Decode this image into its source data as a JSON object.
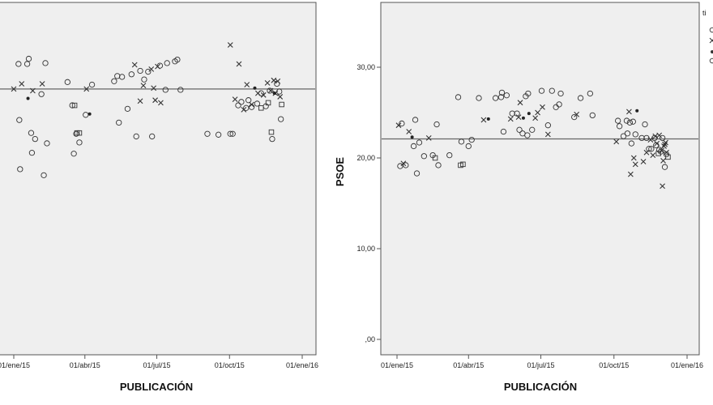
{
  "chart_data": [
    {
      "type": "scatter",
      "xlabel": "PUBLICACIÓN",
      "ylabel": "",
      "x_ticks": [
        "01/ene/15",
        "01/abr/15",
        "01/jul/15",
        "01/oct/15",
        "01/ene/16"
      ],
      "y_ticks": [],
      "reference_line": 28.7,
      "grid": false,
      "series": [
        {
          "marker": "circle",
          "points": [
            [
              "2015-01-07",
              31.6
            ],
            [
              "2015-01-08",
              25.1
            ],
            [
              "2015-01-09",
              19.4
            ],
            [
              "2015-01-18",
              31.6
            ],
            [
              "2015-01-20",
              32.2
            ],
            [
              "2015-01-23",
              23.6
            ],
            [
              "2015-01-24",
              21.3
            ],
            [
              "2015-01-28",
              22.9
            ],
            [
              "2015-02-05",
              28.1
            ],
            [
              "2015-02-08",
              18.7
            ],
            [
              "2015-02-10",
              31.7
            ],
            [
              "2015-02-12",
              22.4
            ],
            [
              "2015-03-10",
              29.5
            ],
            [
              "2015-03-16",
              26.8
            ],
            [
              "2015-03-18",
              21.2
            ],
            [
              "2015-03-21",
              23.5
            ],
            [
              "2015-03-25",
              22.5
            ],
            [
              "2015-04-02",
              25.7
            ],
            [
              "2015-04-10",
              29.2
            ],
            [
              "2015-05-08",
              29.6
            ],
            [
              "2015-05-12",
              30.2
            ],
            [
              "2015-05-14",
              24.8
            ],
            [
              "2015-05-18",
              30.1
            ],
            [
              "2015-05-25",
              26.4
            ],
            [
              "2015-05-30",
              30.4
            ],
            [
              "2015-06-05",
              23.2
            ],
            [
              "2015-06-10",
              30.8
            ],
            [
              "2015-06-15",
              29.8
            ],
            [
              "2015-06-20",
              30.7
            ],
            [
              "2015-06-25",
              23.2
            ],
            [
              "2015-07-05",
              31.4
            ],
            [
              "2015-07-12",
              28.6
            ],
            [
              "2015-07-14",
              31.7
            ],
            [
              "2015-07-24",
              31.9
            ],
            [
              "2015-07-27",
              32.1
            ],
            [
              "2015-07-31",
              28.6
            ],
            [
              "2015-09-03",
              23.5
            ],
            [
              "2015-09-17",
              23.4
            ],
            [
              "2015-10-02",
              23.5
            ],
            [
              "2015-10-05",
              23.5
            ],
            [
              "2015-10-12",
              26.8
            ],
            [
              "2015-10-16",
              27.2
            ],
            [
              "2015-10-22",
              26.5
            ],
            [
              "2015-10-25",
              27.4
            ],
            [
              "2015-10-29",
              26.6
            ],
            [
              "2015-11-05",
              27.0
            ],
            [
              "2015-11-10",
              28.2
            ],
            [
              "2015-11-16",
              26.7
            ],
            [
              "2015-11-21",
              28.5
            ],
            [
              "2015-11-24",
              22.9
            ],
            [
              "2015-11-30",
              29.3
            ],
            [
              "2015-12-03",
              28.4
            ],
            [
              "2015-12-05",
              25.2
            ]
          ]
        },
        {
          "marker": "x",
          "points": [
            [
              "2015-01-01",
              28.7
            ],
            [
              "2015-01-11",
              29.3
            ],
            [
              "2015-01-25",
              28.5
            ],
            [
              "2015-02-06",
              29.3
            ],
            [
              "2015-04-03",
              28.7
            ],
            [
              "2015-06-03",
              31.5
            ],
            [
              "2015-06-10",
              27.3
            ],
            [
              "2015-06-14",
              29.1
            ],
            [
              "2015-06-24",
              31.0
            ],
            [
              "2015-06-27",
              28.8
            ],
            [
              "2015-06-29",
              27.4
            ],
            [
              "2015-07-02",
              31.3
            ],
            [
              "2015-07-06",
              27.1
            ],
            [
              "2015-10-02",
              33.8
            ],
            [
              "2015-10-08",
              27.5
            ],
            [
              "2015-10-13",
              31.6
            ],
            [
              "2015-10-19",
              26.3
            ],
            [
              "2015-10-23",
              29.2
            ],
            [
              "2015-10-29",
              26.9
            ],
            [
              "2015-11-06",
              28.2
            ],
            [
              "2015-11-13",
              28.0
            ],
            [
              "2015-11-18",
              29.4
            ],
            [
              "2015-11-22",
              28.5
            ],
            [
              "2015-11-26",
              29.7
            ],
            [
              "2015-11-28",
              28.2
            ],
            [
              "2015-12-01",
              29.6
            ],
            [
              "2015-12-04",
              27.8
            ]
          ]
        },
        {
          "marker": "dot",
          "points": [
            [
              "2015-01-19",
              27.6
            ],
            [
              "2015-04-07",
              25.8
            ],
            [
              "2015-11-02",
              28.8
            ],
            [
              "2015-11-27",
              28.2
            ]
          ]
        },
        {
          "marker": "square",
          "points": [
            [
              "2015-03-19",
              26.8
            ],
            [
              "2015-03-22",
              23.6
            ],
            [
              "2015-03-25",
              23.6
            ],
            [
              "2015-11-10",
              26.5
            ],
            [
              "2015-11-19",
              27.1
            ],
            [
              "2015-11-23",
              23.7
            ],
            [
              "2015-12-06",
              26.9
            ]
          ]
        }
      ]
    },
    {
      "type": "scatter",
      "xlabel": "PUBLICACIÓN",
      "ylabel": "PSOE",
      "x_ticks": [
        "01/ene/15",
        "01/abr/15",
        "01/jul/15",
        "01/oct/15",
        "01/ene/16"
      ],
      "y_ticks": [
        "30,00",
        "20,00",
        "10,00",
        ",00"
      ],
      "reference_line": 22.1,
      "grid": false,
      "series": [
        {
          "marker": "circle",
          "points": [
            [
              "2015-01-05",
              19.1
            ],
            [
              "2015-01-07",
              23.8
            ],
            [
              "2015-01-12",
              19.2
            ],
            [
              "2015-01-22",
              21.3
            ],
            [
              "2015-01-24",
              24.2
            ],
            [
              "2015-01-26",
              18.3
            ],
            [
              "2015-01-29",
              21.7
            ],
            [
              "2015-02-04",
              20.2
            ],
            [
              "2015-02-15",
              20.3
            ],
            [
              "2015-02-20",
              23.7
            ],
            [
              "2015-02-22",
              19.2
            ],
            [
              "2015-03-08",
              20.3
            ],
            [
              "2015-03-19",
              26.7
            ],
            [
              "2015-03-23",
              21.8
            ],
            [
              "2015-04-01",
              21.3
            ],
            [
              "2015-04-05",
              22.0
            ],
            [
              "2015-04-14",
              26.6
            ],
            [
              "2015-05-05",
              26.6
            ],
            [
              "2015-05-12",
              26.7
            ],
            [
              "2015-05-13",
              27.2
            ],
            [
              "2015-05-15",
              22.9
            ],
            [
              "2015-05-19",
              26.9
            ],
            [
              "2015-05-26",
              24.9
            ],
            [
              "2015-06-01",
              24.9
            ],
            [
              "2015-06-04",
              23.1
            ],
            [
              "2015-06-08",
              22.7
            ],
            [
              "2015-06-12",
              26.8
            ],
            [
              "2015-06-14",
              22.5
            ],
            [
              "2015-06-15",
              27.1
            ],
            [
              "2015-06-20",
              23.1
            ],
            [
              "2015-07-02",
              27.4
            ],
            [
              "2015-07-10",
              23.6
            ],
            [
              "2015-07-15",
              27.4
            ],
            [
              "2015-07-20",
              25.6
            ],
            [
              "2015-07-24",
              25.9
            ],
            [
              "2015-07-26",
              27.1
            ],
            [
              "2015-08-12",
              24.5
            ],
            [
              "2015-08-20",
              26.6
            ],
            [
              "2015-09-01",
              27.1
            ],
            [
              "2015-09-04",
              24.7
            ],
            [
              "2015-10-06",
              24.1
            ],
            [
              "2015-10-08",
              23.5
            ],
            [
              "2015-10-13",
              22.4
            ],
            [
              "2015-10-17",
              24.1
            ],
            [
              "2015-10-18",
              22.7
            ],
            [
              "2015-10-21",
              23.9
            ],
            [
              "2015-10-23",
              21.6
            ],
            [
              "2015-10-25",
              24.0
            ],
            [
              "2015-10-28",
              22.6
            ],
            [
              "2015-11-05",
              22.2
            ],
            [
              "2015-11-09",
              23.7
            ],
            [
              "2015-11-11",
              22.2
            ],
            [
              "2015-11-14",
              21.0
            ],
            [
              "2015-11-17",
              21.0
            ],
            [
              "2015-11-21",
              22.2
            ],
            [
              "2015-11-23",
              21.4
            ],
            [
              "2015-11-27",
              20.9
            ],
            [
              "2015-11-29",
              20.7
            ],
            [
              "2015-12-01",
              22.2
            ],
            [
              "2015-12-04",
              19.0
            ],
            [
              "2015-12-06",
              20.4
            ]
          ]
        },
        {
          "marker": "x",
          "points": [
            [
              "2015-01-03",
              23.6
            ],
            [
              "2015-01-09",
              19.4
            ],
            [
              "2015-01-16",
              22.9
            ],
            [
              "2015-02-10",
              22.2
            ],
            [
              "2015-04-20",
              24.2
            ],
            [
              "2015-05-24",
              24.3
            ],
            [
              "2015-06-03",
              24.5
            ],
            [
              "2015-06-05",
              26.1
            ],
            [
              "2015-06-24",
              24.4
            ],
            [
              "2015-06-27",
              25.0
            ],
            [
              "2015-07-03",
              25.6
            ],
            [
              "2015-07-10",
              22.6
            ],
            [
              "2015-08-15",
              24.8
            ],
            [
              "2015-10-04",
              21.8
            ],
            [
              "2015-10-20",
              25.1
            ],
            [
              "2015-10-22",
              18.2
            ],
            [
              "2015-10-26",
              20.0
            ],
            [
              "2015-10-28",
              19.3
            ],
            [
              "2015-11-07",
              19.6
            ],
            [
              "2015-11-11",
              20.6
            ],
            [
              "2015-11-16",
              22.0
            ],
            [
              "2015-11-19",
              20.3
            ],
            [
              "2015-11-22",
              22.4
            ],
            [
              "2015-11-24",
              21.6
            ],
            [
              "2015-11-27",
              22.5
            ],
            [
              "2015-11-30",
              20.8
            ],
            [
              "2015-12-01",
              16.9
            ],
            [
              "2015-12-02",
              19.7
            ],
            [
              "2015-12-03",
              21.3
            ],
            [
              "2015-12-04",
              21.5
            ],
            [
              "2015-12-05",
              21.7
            ],
            [
              "2015-12-06",
              20.6
            ]
          ]
        },
        {
          "marker": "dot",
          "points": [
            [
              "2015-01-20",
              22.3
            ],
            [
              "2015-04-26",
              24.3
            ],
            [
              "2015-06-09",
              24.4
            ],
            [
              "2015-06-16",
              24.9
            ],
            [
              "2015-10-30",
              25.2
            ]
          ]
        },
        {
          "marker": "square",
          "points": [
            [
              "2015-02-18",
              20.0
            ],
            [
              "2015-03-22",
              19.2
            ],
            [
              "2015-03-25",
              19.3
            ],
            [
              "2015-11-26",
              20.5
            ],
            [
              "2015-12-08",
              20.1
            ]
          ]
        }
      ]
    }
  ],
  "legend": {
    "title": "ti",
    "position": "right"
  },
  "colors": {
    "plot_background": "#efefef",
    "axis": "#555555",
    "markers": "#333333",
    "reference_line": "#666666"
  }
}
